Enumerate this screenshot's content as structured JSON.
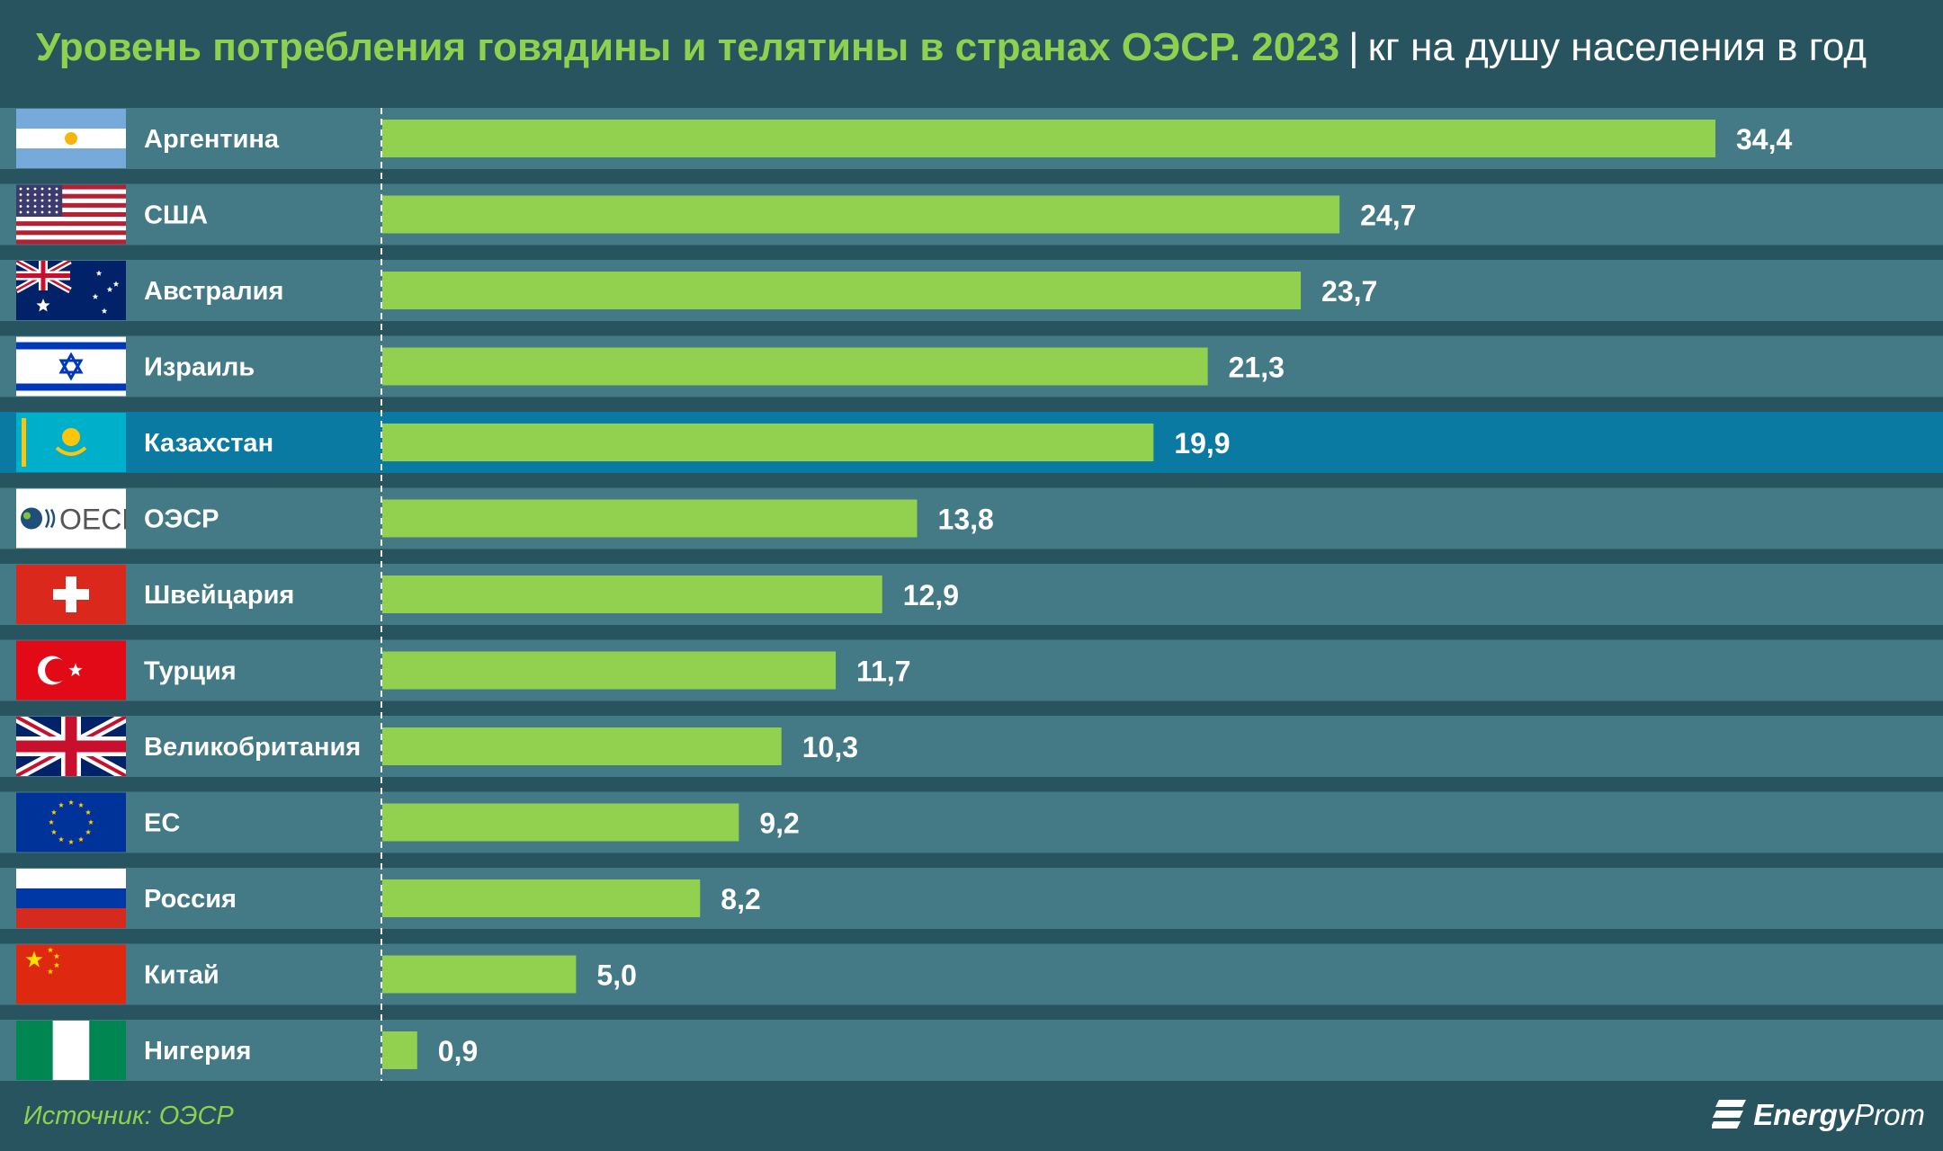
{
  "header": {
    "title": "Уровень потребления говядины и телятины в странах ОЭСР. 2023",
    "separator": "|",
    "unit": "кг на душу населения в год"
  },
  "footer": {
    "source": "Источник: ОЭСР",
    "logo_part1": "Energy",
    "logo_part2": "Prom"
  },
  "colors": {
    "background": "#27545f",
    "row": "#437a85",
    "row_highlight": "#0b7aa3",
    "bar": "#92d050",
    "title": "#8fd14f",
    "text": "#ffffff"
  },
  "chart_data": {
    "type": "bar",
    "orientation": "horizontal",
    "highlight_category": "Казахстан",
    "xlim": [
      0,
      34.4
    ],
    "categories": [
      "Аргентина",
      "США",
      "Австралия",
      "Израиль",
      "Казахстан",
      "ОЭСР",
      "Швейцария",
      "Турция",
      "Великобритания",
      "ЕС",
      "Россия",
      "Китай",
      "Нигерия"
    ],
    "values": [
      34.4,
      24.7,
      23.7,
      21.3,
      19.9,
      13.8,
      12.9,
      11.7,
      10.3,
      9.2,
      8.2,
      5.0,
      0.9
    ],
    "value_labels": [
      "34,4",
      "24,7",
      "23,7",
      "21,3",
      "19,9",
      "13,8",
      "12,9",
      "11,7",
      "10,3",
      "9,2",
      "8,2",
      "5,0",
      "0,9"
    ],
    "flags": [
      "argentina",
      "usa",
      "australia",
      "israel",
      "kazakhstan",
      "oecd",
      "switzerland",
      "turkey",
      "uk",
      "eu",
      "russia",
      "china",
      "nigeria"
    ],
    "oecd_logo_text": "OECD"
  }
}
